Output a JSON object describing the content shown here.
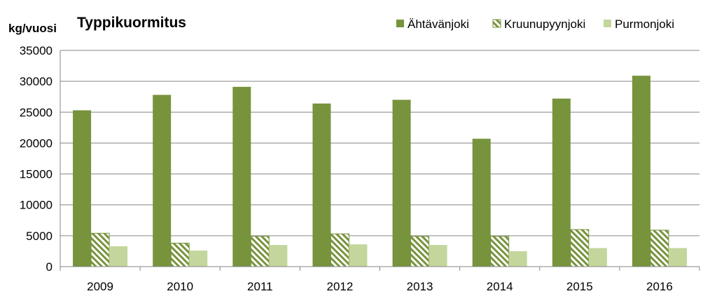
{
  "chart_data": {
    "type": "bar",
    "title": "Typpikuormitus",
    "ylabel": "kg/vuosi",
    "xlabel": "",
    "ylim": [
      0,
      35000
    ],
    "yticks": [
      0,
      5000,
      10000,
      15000,
      20000,
      25000,
      30000,
      35000
    ],
    "grid": true,
    "legend_position": "top-right",
    "categories": [
      "2009",
      "2010",
      "2011",
      "2012",
      "2013",
      "2014",
      "2015",
      "2016"
    ],
    "series": [
      {
        "name": "Ähtävänjoki",
        "pattern": "solid",
        "color": "#77933c",
        "values": [
          25300,
          27800,
          29100,
          26400,
          27000,
          20700,
          27200,
          30900
        ]
      },
      {
        "name": "Kruunupyynjoki",
        "pattern": "hatched",
        "color": "#77933c",
        "values": [
          5400,
          3800,
          4900,
          5300,
          4900,
          4900,
          6000,
          5900
        ]
      },
      {
        "name": "Purmonjoki",
        "pattern": "solid",
        "color": "#c3d69b",
        "values": [
          3300,
          2600,
          3500,
          3600,
          3500,
          2500,
          3000,
          3000
        ]
      }
    ]
  }
}
